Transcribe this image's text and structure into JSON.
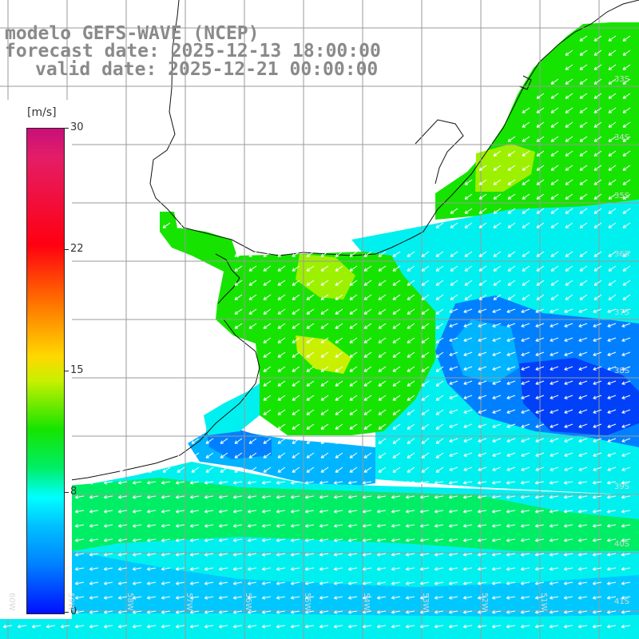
{
  "title": {
    "line1": "modelo GEFS-WAVE (NCEP)",
    "line2": "forecast date: 2025-12-13 18:00:00",
    "line3": "valid date: 2025-12-21 00:00:00"
  },
  "colorbar": {
    "unit": "[m/s]",
    "ticks": [
      {
        "label": "30",
        "value": 30
      },
      {
        "label": "22",
        "value": 22
      },
      {
        "label": "15",
        "value": 15
      },
      {
        "label": "8",
        "value": 8
      },
      {
        "label": "0",
        "value": 0
      }
    ],
    "range": [
      0,
      30
    ],
    "palette": [
      "#0010ff",
      "#0080ff",
      "#00ffff",
      "#00ee66",
      "#16e400",
      "#c8f000",
      "#ffd800",
      "#ff6a00",
      "#ff0010",
      "#c8107a"
    ]
  },
  "map": {
    "field": "wind speed (arrows show direction)",
    "ocean_colors": {
      "cyan": "#00f0f0",
      "cyan_green": "#00f0a0",
      "green": "#16e400",
      "yellow_green": "#9cf000",
      "light_blue": "#00b4ff",
      "blue": "#0060ff",
      "deep_blue": "#0030f0"
    },
    "latitude_labels": [
      "33S",
      "34S",
      "35S",
      "36S",
      "37S",
      "38S",
      "39S",
      "40S",
      "41S"
    ],
    "longitude_labels": [
      "60W",
      "59W",
      "58W",
      "57W",
      "56W",
      "55W",
      "54W",
      "53W",
      "52W",
      "51W"
    ]
  }
}
